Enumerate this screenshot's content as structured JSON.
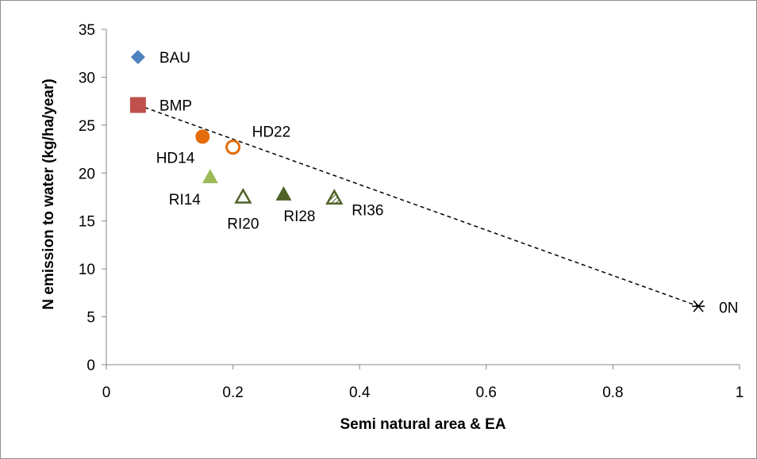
{
  "chart_data": {
    "type": "scatter",
    "title": "",
    "xlabel": "Semi natural area & EA",
    "ylabel": "N emission to water (kg/ha/year)",
    "xlim": [
      0,
      1
    ],
    "ylim": [
      0,
      35
    ],
    "x_ticks": [
      "0",
      "0.2",
      "0.4",
      "0.6",
      "0.8",
      "1"
    ],
    "y_ticks": [
      "0",
      "5",
      "10",
      "15",
      "20",
      "25",
      "30",
      "35"
    ],
    "grid": false,
    "legend": "none",
    "points": [
      {
        "label": "BAU",
        "x": 0.05,
        "y": 32.1,
        "marker": "diamond",
        "color": "#4f81bd"
      },
      {
        "label": "BMP",
        "x": 0.05,
        "y": 27.1,
        "marker": "square",
        "color": "#c0504d"
      },
      {
        "label": "HD14",
        "x": 0.152,
        "y": 23.8,
        "marker": "circle",
        "color": "#e46c0a"
      },
      {
        "label": "HD22",
        "x": 0.2,
        "y": 22.7,
        "marker": "circle-open",
        "color": "#e46c0a"
      },
      {
        "label": "RI14",
        "x": 0.164,
        "y": 19.6,
        "marker": "triangle",
        "color": "#9bbb59"
      },
      {
        "label": "RI20",
        "x": 0.216,
        "y": 17.5,
        "marker": "triangle-open",
        "color": "#4f6228"
      },
      {
        "label": "RI28",
        "x": 0.28,
        "y": 17.8,
        "marker": "triangle",
        "color": "#4f6228"
      },
      {
        "label": "RI36",
        "x": 0.36,
        "y": 17.4,
        "marker": "triangle-hatch",
        "color": "#4f6228"
      },
      {
        "label": "0N",
        "x": 0.935,
        "y": 6.1,
        "marker": "star",
        "color": "#000000"
      }
    ],
    "trendline": {
      "from": [
        0.05,
        27.1
      ],
      "to": [
        0.935,
        6.1
      ],
      "style": "dashed",
      "color": "#000000"
    }
  }
}
